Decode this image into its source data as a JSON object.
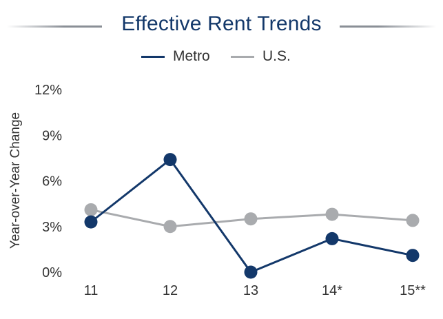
{
  "chart_data": {
    "type": "line",
    "title": "Effective Rent Trends",
    "ylabel": "Year-over-Year Change",
    "xlabel": "",
    "categories": [
      "11",
      "12",
      "13",
      "14*",
      "15**"
    ],
    "y_ticks": [
      "0%",
      "3%",
      "6%",
      "9%",
      "12%"
    ],
    "ylim": [
      0,
      12
    ],
    "grid": false,
    "legend_position": "top-center",
    "series": [
      {
        "name": "Metro",
        "color": "#13386a",
        "values": [
          3.3,
          7.4,
          0.0,
          2.2,
          1.1
        ]
      },
      {
        "name": "U.S.",
        "color": "#a9abae",
        "values": [
          4.1,
          3.0,
          3.5,
          3.8,
          3.4
        ]
      }
    ]
  }
}
